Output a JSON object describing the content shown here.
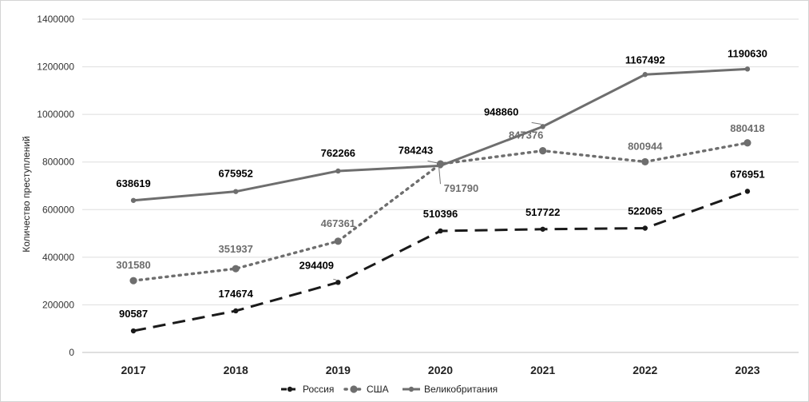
{
  "chart_data": {
    "type": "line",
    "title": "",
    "xlabel": "",
    "ylabel": "Количество преступлений",
    "categories": [
      "2017",
      "2018",
      "2019",
      "2020",
      "2021",
      "2022",
      "2023"
    ],
    "ylim": [
      0,
      1400000
    ],
    "yticks": [
      "0",
      "200000",
      "400000",
      "600000",
      "800000",
      "1000000",
      "1200000",
      "1400000"
    ],
    "grid": true,
    "legend_position": "bottom",
    "series": [
      {
        "name": "Россия",
        "style": "dashed",
        "color": "#1a1a1a",
        "label_color": "#000000",
        "values": [
          90587,
          174674,
          294409,
          510396,
          517722,
          522065,
          676951
        ],
        "labels": [
          "90587",
          "174674",
          "294409",
          "510396",
          "517722",
          "522065",
          "676951"
        ]
      },
      {
        "name": "США",
        "style": "dotted",
        "color": "#6e6e6e",
        "label_color": "#6e6e6e",
        "values": [
          301580,
          351937,
          467361,
          791790,
          847376,
          800944,
          880418
        ],
        "labels": [
          "301580",
          "351937",
          "467361",
          "791790",
          "847376",
          "800944",
          "880418"
        ]
      },
      {
        "name": "Великобритания",
        "style": "solid",
        "color": "#6e6e6e",
        "label_color": "#000000",
        "values": [
          638619,
          675952,
          762266,
          784243,
          948860,
          1167492,
          1190630
        ],
        "labels": [
          "638619",
          "675952",
          "762266",
          "784243",
          "948860",
          "1167492",
          "1190630"
        ]
      }
    ]
  }
}
